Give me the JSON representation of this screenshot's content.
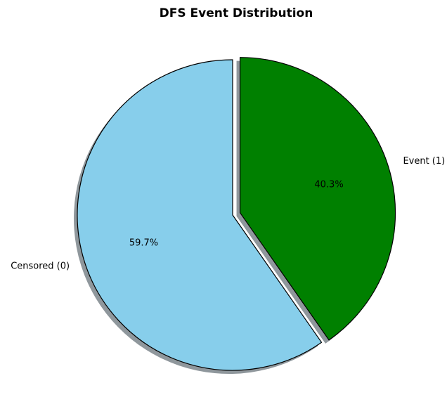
{
  "chart_data": {
    "type": "pie",
    "title": "DFS Event Distribution",
    "categories": [
      "Censored (0)",
      "Event (1)"
    ],
    "values": [
      59.7,
      40.3
    ],
    "value_labels": [
      "59.7%",
      "40.3%"
    ],
    "colors": [
      "#87ceeb",
      "#008000"
    ],
    "explode": [
      0,
      0.05
    ],
    "shadow": true,
    "start_angle_deg": 90,
    "legend": "none"
  }
}
